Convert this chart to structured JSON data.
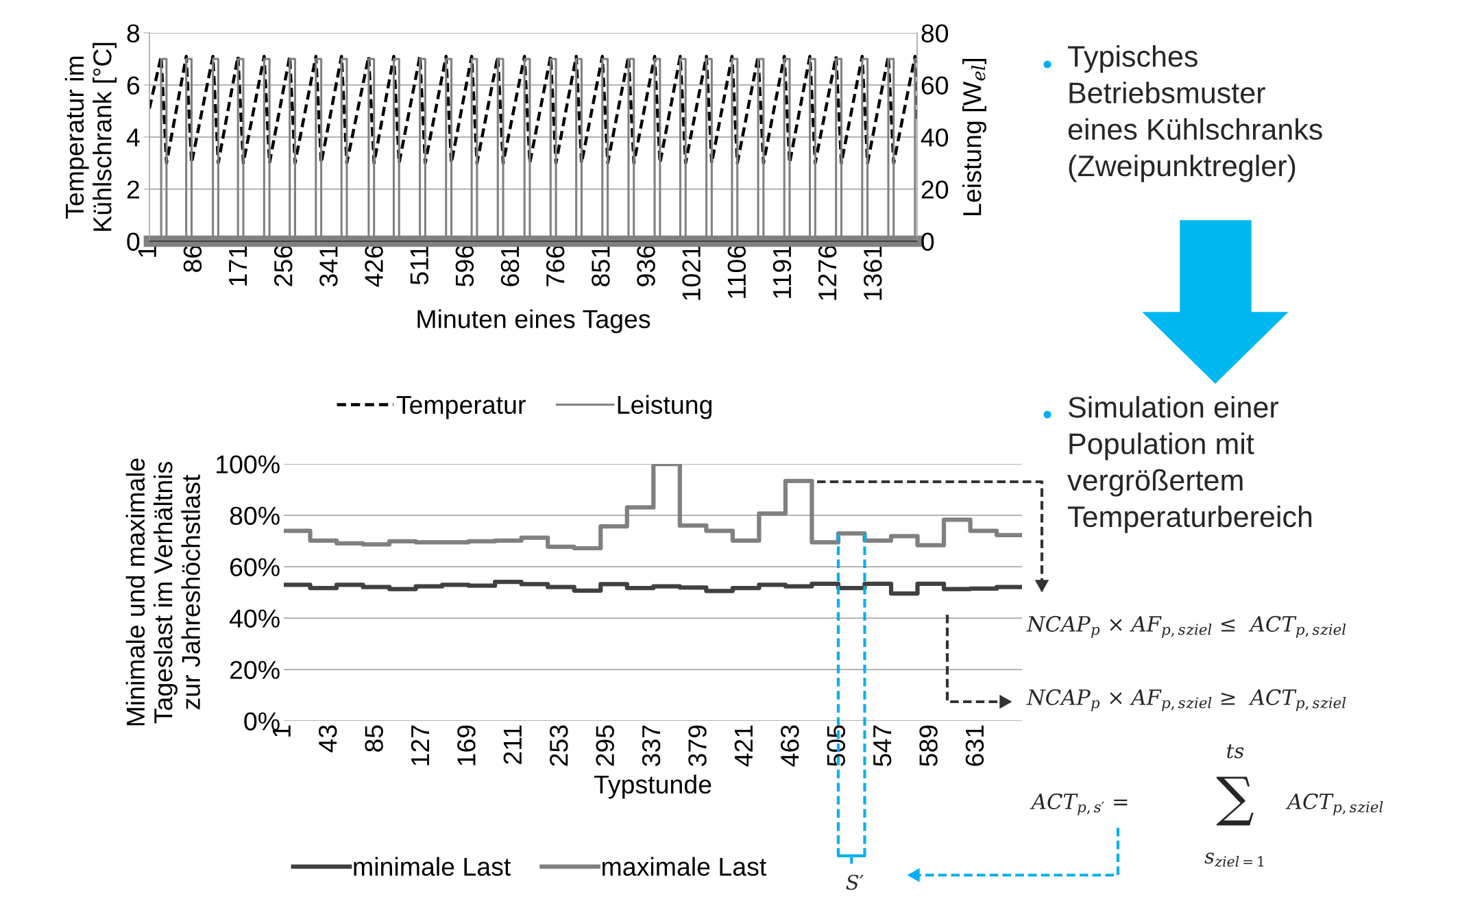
{
  "chart_data": [
    {
      "type": "line",
      "xlabel": "Minuten eines Tages",
      "ylabel": "Temperatur im\nKühlschrank [°C]",
      "y2label": "Leistung [W$_{el}$]",
      "xlim": [
        1,
        1440
      ],
      "xticks": [
        1,
        86,
        171,
        256,
        341,
        426,
        511,
        596,
        681,
        766,
        851,
        936,
        1021,
        1106,
        1191,
        1276,
        1361
      ],
      "ylim": [
        0,
        8
      ],
      "yticks": [
        0,
        2,
        4,
        6,
        8
      ],
      "y2lim": [
        0,
        80
      ],
      "y2ticks": [
        0,
        20,
        40,
        60,
        80
      ],
      "grid": "y",
      "legend": "bottom",
      "series": [
        {
          "name": "Temperatur",
          "color": "#000000",
          "line_style": "dashed",
          "x": [
            1,
            23,
            33,
            70,
            80,
            120,
            130,
            167,
            177,
            216,
            226,
            264,
            274,
            313,
            323,
            361,
            371,
            412,
            422,
            459,
            469,
            508,
            518,
            557,
            567,
            605,
            615,
            654,
            664,
            704,
            714,
            753,
            763,
            801,
            811,
            850,
            860,
            899,
            909,
            948,
            958,
            996,
            1006,
            1045,
            1055,
            1093,
            1103,
            1142,
            1152,
            1191,
            1201,
            1239,
            1249,
            1288,
            1298,
            1337,
            1347,
            1386,
            1396,
            1436,
            1440
          ],
          "values": [
            5.1,
            7.1,
            3.0,
            7.1,
            3.0,
            7.1,
            3.0,
            7.1,
            3.0,
            7.1,
            3.0,
            7.1,
            3.0,
            7.1,
            3.0,
            7.1,
            3.0,
            7.1,
            3.0,
            7.1,
            3.0,
            7.1,
            3.0,
            7.1,
            3.0,
            7.1,
            3.0,
            7.1,
            3.0,
            7.1,
            3.0,
            7.1,
            3.0,
            7.1,
            3.0,
            7.1,
            3.0,
            7.1,
            3.0,
            7.1,
            3.0,
            7.1,
            3.0,
            7.1,
            3.0,
            7.1,
            3.0,
            7.1,
            3.0,
            7.1,
            3.0,
            7.1,
            3.0,
            7.1,
            3.0,
            7.1,
            3.0,
            7.1,
            3.0,
            7.1,
            4.6
          ]
        },
        {
          "name": "Leistung",
          "color": "#808080",
          "line_style": "solid",
          "axis": "y2",
          "x": [
            1,
            23,
            23,
            33,
            33,
            70,
            70,
            80,
            80,
            120,
            120,
            130,
            130,
            167,
            167,
            177,
            177,
            216,
            216,
            226,
            226,
            264,
            264,
            274,
            274,
            313,
            313,
            323,
            323,
            361,
            361,
            371,
            371,
            412,
            412,
            422,
            422,
            459,
            459,
            469,
            469,
            508,
            508,
            518,
            518,
            557,
            557,
            567,
            567,
            605,
            605,
            615,
            615,
            654,
            654,
            664,
            664,
            704,
            704,
            714,
            714,
            753,
            753,
            763,
            763,
            801,
            801,
            811,
            811,
            850,
            850,
            860,
            860,
            899,
            899,
            909,
            909,
            948,
            948,
            958,
            958,
            996,
            996,
            1006,
            1006,
            1045,
            1045,
            1055,
            1055,
            1093,
            1093,
            1103,
            1103,
            1142,
            1142,
            1152,
            1152,
            1191,
            1191,
            1201,
            1201,
            1239,
            1239,
            1249,
            1249,
            1288,
            1288,
            1298,
            1298,
            1337,
            1337,
            1347,
            1347,
            1386,
            1386,
            1396,
            1396,
            1436,
            1436,
            1440
          ],
          "values": [
            0,
            0,
            70,
            70,
            0,
            0,
            70,
            70,
            0,
            0,
            70,
            70,
            0,
            0,
            70,
            70,
            0,
            0,
            70,
            70,
            0,
            0,
            70,
            70,
            0,
            0,
            70,
            70,
            0,
            0,
            70,
            70,
            0,
            0,
            70,
            70,
            0,
            0,
            70,
            70,
            0,
            0,
            70,
            70,
            0,
            0,
            70,
            70,
            0,
            0,
            70,
            70,
            0,
            0,
            70,
            70,
            0,
            0,
            70,
            70,
            0,
            0,
            70,
            70,
            0,
            0,
            70,
            70,
            0,
            0,
            70,
            70,
            0,
            0,
            70,
            70,
            0,
            0,
            70,
            70,
            0,
            0,
            70,
            70,
            0,
            0,
            70,
            70,
            0,
            0,
            70,
            70,
            0,
            0,
            70,
            70,
            0,
            0,
            70,
            70,
            0,
            0,
            70,
            70,
            0,
            0,
            70,
            70,
            0,
            0,
            70,
            70,
            0,
            0,
            70,
            70,
            0,
            0,
            70,
            70
          ]
        }
      ],
      "annotations": [
        "Typisches\nBetriebsmuster\neines Kühlschranks\n(Zweipunktregler)"
      ]
    },
    {
      "type": "step",
      "xlabel": "Typstunde",
      "ylabel": "Minimale und maximale\nTageslast im Verhältnis\nzur Jahreshöchstlast",
      "xlim": [
        1,
        672
      ],
      "xticks": [
        1,
        43,
        85,
        127,
        169,
        211,
        253,
        295,
        337,
        379,
        421,
        463,
        505,
        547,
        589,
        631
      ],
      "ylim": [
        0,
        100
      ],
      "yticks": [
        {
          "value": 0,
          "label": "0%"
        },
        {
          "value": 20,
          "label": "20%"
        },
        {
          "value": 40,
          "label": "40%"
        },
        {
          "value": 60,
          "label": "60%"
        },
        {
          "value": 80,
          "label": "80%"
        },
        {
          "value": 100,
          "label": "100%"
        }
      ],
      "grid": "y",
      "legend": "bottom",
      "x": [
        1,
        25,
        49,
        73,
        97,
        121,
        145,
        169,
        193,
        217,
        241,
        265,
        289,
        313,
        337,
        361,
        385,
        409,
        433,
        457,
        481,
        505,
        529,
        553,
        577,
        601,
        625,
        649,
        672
      ],
      "series": [
        {
          "name": "minimale Last",
          "color": "#404040",
          "values": [
            53.0,
            51.7,
            53.0,
            52.1,
            51.3,
            52.4,
            53.0,
            52.6,
            54.1,
            53.2,
            52.1,
            50.7,
            53.2,
            51.7,
            52.4,
            51.9,
            50.6,
            51.7,
            53.0,
            52.4,
            53.4,
            51.7,
            53.4,
            49.6,
            53.4,
            51.3,
            51.5,
            52.1,
            52.1
          ]
        },
        {
          "name": "maximale Last",
          "color": "#808080",
          "values": [
            74.0,
            70.2,
            69.1,
            68.7,
            69.9,
            69.5,
            69.5,
            69.9,
            70.2,
            71.3,
            67.8,
            67.2,
            75.7,
            83.1,
            100,
            76.0,
            74.0,
            70.2,
            80.7,
            93.4,
            69.5,
            73.0,
            70.2,
            71.9,
            68.4,
            78.3,
            74.0,
            72.3,
            72.3
          ]
        }
      ],
      "ref_lines": [
        {
          "axis": "x",
          "value": 505,
          "color": "#00b0f0",
          "line_style": "dashed"
        },
        {
          "axis": "x",
          "value": 529,
          "color": "#00b0f0",
          "line_style": "dashed"
        }
      ],
      "annotations": [
        "Simulation einer\nPopulation mit\nvergrößertem\nTemperaturbereich",
        "NCAP$_{p}$ × AF$_{p,s}$$_{ziel}$ ≤  ACT$_{p,s}$$_{ziel}$",
        "NCAP$_{p}$ × AF$_{p,s}$$_{ziel}$ ≥  ACT$_{p,s}$$_{ziel}$",
        "ACT$_{p,s′}$ =",
        "ts",
        "∑",
        "s$_{ziel=1}$",
        "ACT$_{p,s}$$_{ziel}$",
        "S′"
      ]
    }
  ]
}
